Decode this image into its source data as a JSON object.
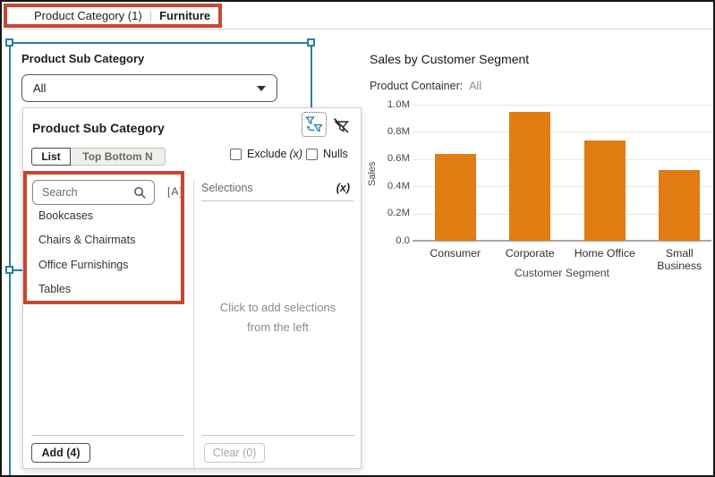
{
  "top_bar": {
    "filter_name": "Product Category (1)",
    "separator": "|",
    "filter_value": "Furniture"
  },
  "filter_control": {
    "label": "Product Sub Category",
    "dropdown_value": "All"
  },
  "popup": {
    "title": "Product Sub Category",
    "icons": {
      "swap": "filter-swap-icon",
      "clear": "filter-clear-icon"
    },
    "tabs": [
      {
        "label": "List",
        "active": true
      },
      {
        "label": "Top Bottom N",
        "active": false
      }
    ],
    "checkboxes": [
      {
        "label": "Exclude",
        "suffix": "(x)",
        "checked": false
      },
      {
        "label": "Nulls",
        "suffix": "",
        "checked": false
      }
    ],
    "search": {
      "placeholder": "Search",
      "match_case_label": "[A]"
    },
    "items": [
      "Bookcases",
      "Chairs & Chairmats",
      "Office Furnishings",
      "Tables"
    ],
    "selections": {
      "header": "Selections",
      "badge": "(x)",
      "placeholder_line1": "Click to add selections",
      "placeholder_line2": "from the left"
    },
    "add_button": "Add (4)",
    "clear_button": "Clear (0)"
  },
  "chart": {
    "title": "Sales by Customer Segment",
    "subtitle_label": "Product Container:",
    "subtitle_value": "All"
  },
  "chart_data": {
    "type": "bar",
    "title": "Sales by Customer Segment",
    "subtitle": "Product Container: All",
    "categories": [
      "Consumer",
      "Corporate",
      "Home Office",
      "Small Business"
    ],
    "values": [
      0.64,
      0.95,
      0.74,
      0.52
    ],
    "value_unit": "M",
    "xlabel": "Customer Segment",
    "ylabel": "Sales",
    "ylim": [
      0,
      1.0
    ],
    "yticks": [
      "0.0",
      "0.2M",
      "0.4M",
      "0.6M",
      "0.8M",
      "1.0M"
    ],
    "grid": "horizontal",
    "legend": "none",
    "bar_color": "#E07C12"
  },
  "colors": {
    "annotation_red": "#C74634",
    "selection_teal": "#2C7F9E",
    "bar_orange": "#E07C12",
    "icon_teal": "#1D7FAB"
  }
}
